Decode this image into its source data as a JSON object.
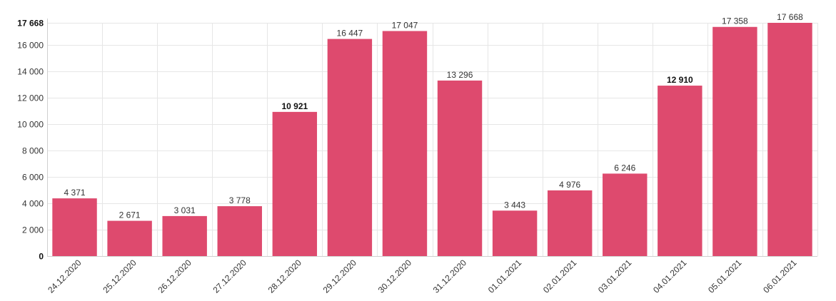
{
  "chart_data": {
    "type": "bar",
    "categories": [
      "24.12.2020",
      "25.12.2020",
      "26.12.2020",
      "27.12.2020",
      "28.12.2020",
      "29.12.2020",
      "30.12.2020",
      "31.12.2020",
      "01.01.2021",
      "02.01.2021",
      "03.01.2021",
      "04.01.2021",
      "05.01.2021",
      "06.01.2021"
    ],
    "values": [
      4371,
      2671,
      3031,
      3778,
      10921,
      16447,
      17047,
      13296,
      3443,
      4976,
      6246,
      12910,
      17358,
      17668
    ],
    "value_labels": [
      "4 371",
      "2 671",
      "3 031",
      "3 778",
      "10 921",
      "16 447",
      "17 047",
      "13 296",
      "3 443",
      "4 976",
      "6 246",
      "12 910",
      "17 358",
      "17 668"
    ],
    "bold_value_labels": [
      "10 921",
      "12 910"
    ],
    "y_ticks": [
      0,
      2000,
      4000,
      6000,
      8000,
      10000,
      12000,
      14000,
      16000,
      17668
    ],
    "y_tick_labels": [
      "0",
      "2 000",
      "4 000",
      "6 000",
      "8 000",
      "10 000",
      "12 000",
      "14 000",
      "16 000",
      "17 668"
    ],
    "bold_y_tick_labels": [
      "0",
      "17 668"
    ],
    "ylim": [
      0,
      17668
    ],
    "grid": true,
    "bar_color": "#de4a6e"
  }
}
